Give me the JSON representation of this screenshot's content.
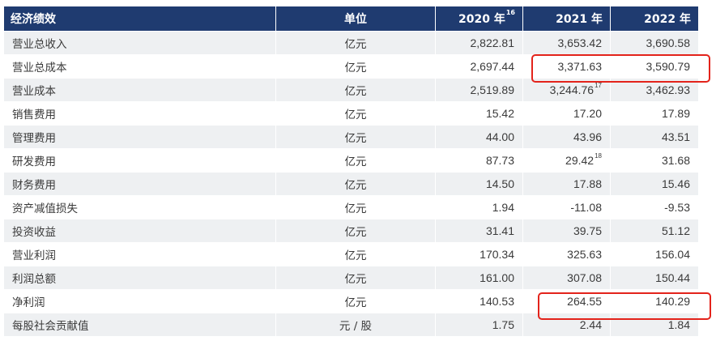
{
  "header": {
    "name": "经济绩效",
    "unit": "单位",
    "year1": "2020 年",
    "year1_note": "16",
    "year2": "2021 年",
    "year3": "2022 年"
  },
  "rows": [
    {
      "name": "营业总收入",
      "unit": "亿元",
      "v2020": "2,822.81",
      "v2021": "3,653.42",
      "v2021_note": "",
      "v2022": "3,690.58"
    },
    {
      "name": "营业总成本",
      "unit": "亿元",
      "v2020": "2,697.44",
      "v2021": "3,371.63",
      "v2021_note": "",
      "v2022": "3,590.79"
    },
    {
      "name": "营业成本",
      "unit": "亿元",
      "v2020": "2,519.89",
      "v2021": "3,244.76",
      "v2021_note": "17",
      "v2022": "3,462.93"
    },
    {
      "name": "销售费用",
      "unit": "亿元",
      "v2020": "15.42",
      "v2021": "17.20",
      "v2021_note": "",
      "v2022": "17.89"
    },
    {
      "name": "管理费用",
      "unit": "亿元",
      "v2020": "44.00",
      "v2021": "43.96",
      "v2021_note": "",
      "v2022": "43.51"
    },
    {
      "name": "研发费用",
      "unit": "亿元",
      "v2020": "87.73",
      "v2021": "29.42",
      "v2021_note": "18",
      "v2022": "31.68"
    },
    {
      "name": "财务费用",
      "unit": "亿元",
      "v2020": "14.50",
      "v2021": "17.88",
      "v2021_note": "",
      "v2022": "15.46"
    },
    {
      "name": "资产减值损失",
      "unit": "亿元",
      "v2020": "1.94",
      "v2021": "-11.08",
      "v2021_note": "",
      "v2022": "-9.53"
    },
    {
      "name": "投资收益",
      "unit": "亿元",
      "v2020": "31.41",
      "v2021": "39.75",
      "v2021_note": "",
      "v2022": "51.12"
    },
    {
      "name": "营业利润",
      "unit": "亿元",
      "v2020": "170.34",
      "v2021": "325.63",
      "v2021_note": "",
      "v2022": "156.04"
    },
    {
      "name": "利润总额",
      "unit": "亿元",
      "v2020": "161.00",
      "v2021": "307.08",
      "v2021_note": "",
      "v2022": "150.44"
    },
    {
      "name": "净利润",
      "unit": "亿元",
      "v2020": "140.53",
      "v2021": "264.55",
      "v2021_note": "",
      "v2022": "140.29"
    },
    {
      "name": "每股社会贡献值",
      "unit": "元 / 股",
      "v2020": "1.75",
      "v2021": "2.44",
      "v2021_note": "",
      "v2022": "1.84"
    }
  ],
  "colors": {
    "header_bg": "#1f3b70",
    "stripe": "#eef0f2",
    "highlight": "#e3231b"
  }
}
